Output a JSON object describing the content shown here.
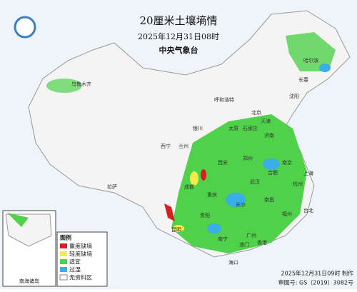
{
  "header": {
    "title": "20厘米土壤墒情",
    "time": "2025年12月31日08时",
    "source": "中央气象台"
  },
  "legend": {
    "title": "图例",
    "items": [
      "重度缺墒",
      "轻度缺墒",
      "适宜",
      "过湿",
      "无资料区"
    ]
  },
  "inset": {
    "label": "南海诸岛"
  },
  "cities": [
    "北京",
    "天津",
    "上海",
    "广州",
    "香港",
    "澳门",
    "台北",
    "昆明",
    "成都",
    "重庆",
    "西安",
    "郑州",
    "武汉",
    "长沙",
    "南昌",
    "福州",
    "南宁",
    "海口",
    "贵阳",
    "拉萨",
    "乌鲁木齐",
    "呼和浩特",
    "哈尔滨",
    "长春",
    "沈阳",
    "济南",
    "太原",
    "石家庄",
    "南京",
    "合肥",
    "杭州",
    "银川",
    "兰州",
    "西宁"
  ],
  "footer": {
    "made": "2025年12月31日09时 制作",
    "approval": "审图号: GS（2019）3082号"
  }
}
